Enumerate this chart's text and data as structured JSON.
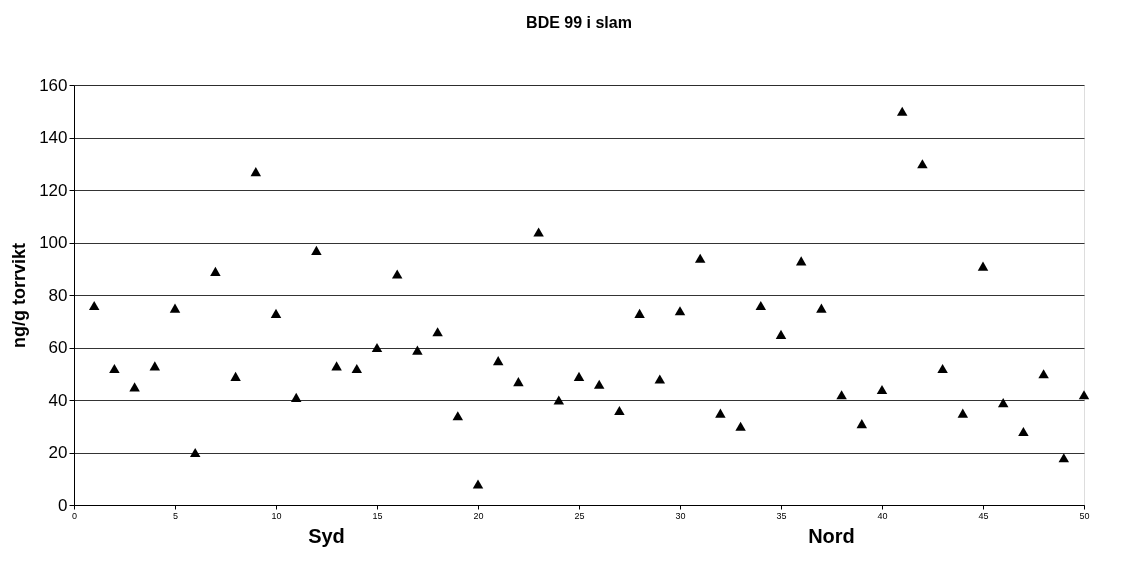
{
  "chart_data": {
    "type": "scatter",
    "title": "BDE 99 i slam",
    "ylabel": "ng/g torrvikt",
    "x": [
      1,
      2,
      3,
      4,
      5,
      6,
      7,
      8,
      9,
      10,
      11,
      12,
      13,
      14,
      15,
      16,
      17,
      18,
      19,
      20,
      21,
      22,
      23,
      24,
      25,
      26,
      27,
      28,
      29,
      30,
      31,
      32,
      33,
      34,
      35,
      36,
      37,
      38,
      39,
      40,
      41,
      42,
      43,
      44,
      45,
      46,
      47,
      48,
      49,
      50
    ],
    "series": [
      {
        "color": "#000000",
        "values": [
          76,
          52,
          45,
          53,
          75,
          20,
          89,
          49,
          127,
          73,
          41,
          97,
          53,
          52,
          60,
          88,
          59,
          66,
          34,
          8,
          55,
          47,
          104,
          40,
          49,
          46,
          36,
          73,
          48,
          74,
          94,
          35,
          30,
          76,
          65,
          93,
          75,
          42,
          31,
          44,
          150,
          130,
          52,
          35,
          91,
          39,
          28,
          50,
          18,
          42
        ]
      }
    ],
    "xlim": [
      0,
      50
    ],
    "xticks": [
      0,
      5,
      10,
      15,
      20,
      25,
      30,
      35,
      40,
      45,
      50
    ],
    "ylim": [
      0,
      160
    ],
    "yticks": [
      0,
      20,
      40,
      60,
      80,
      100,
      120,
      140,
      160
    ],
    "grid": "y",
    "marker": "triangle",
    "legend": false,
    "annotations": [
      "Syd",
      "Nord"
    ]
  }
}
